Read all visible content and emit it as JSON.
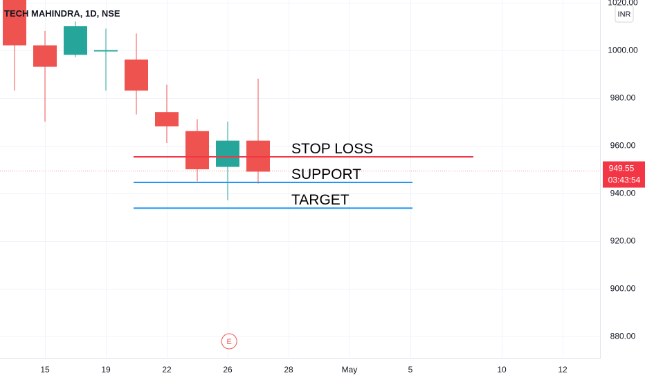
{
  "chart_data": {
    "type": "candlestick",
    "title": "TECH MAHINDRA, 1D, NSE",
    "currency": "INR",
    "y_ticks": [
      "1020.00",
      "1000.00",
      "980.00",
      "960.00",
      "940.00",
      "920.00",
      "900.00",
      "880.00"
    ],
    "y_tick_values": [
      1020,
      1000,
      980,
      960,
      940,
      920,
      900,
      880
    ],
    "ylim": [
      875,
      1020
    ],
    "x_tick_labels": [
      "15",
      "19",
      "22",
      "26",
      "28",
      "May",
      "5",
      "10",
      "12"
    ],
    "x_tick_positions": [
      1.0,
      3.0,
      5.0,
      7.0,
      9.0,
      11.0,
      13.0,
      16.0,
      18.0
    ],
    "xlim": [
      -0.5,
      18.5
    ],
    "candles": [
      {
        "o": 1022.0,
        "h": 1025.0,
        "l": 983.0,
        "c": 1002.0
      },
      {
        "o": 1002.0,
        "h": 1008.0,
        "l": 970.0,
        "c": 993.0
      },
      {
        "o": 998.0,
        "h": 1012.0,
        "l": 997.0,
        "c": 1010.0
      },
      {
        "o": 999.5,
        "h": 1009.0,
        "l": 983.0,
        "c": 1000.0
      },
      {
        "o": 996.0,
        "h": 1007.0,
        "l": 973.0,
        "c": 983.0
      },
      {
        "o": 974.0,
        "h": 985.5,
        "l": 961.0,
        "c": 968.0
      },
      {
        "o": 966.0,
        "h": 971.0,
        "l": 945.0,
        "c": 950.0
      },
      {
        "o": 951.0,
        "h": 970.0,
        "l": 937.0,
        "c": 962.0
      },
      {
        "o": 962.0,
        "h": 988.0,
        "l": 944.0,
        "c": 949.0
      }
    ],
    "bull_color": "#26a69a",
    "bear_color": "#ef5350",
    "current_price": "949.55",
    "countdown": "03:43:54",
    "current_price_value": 949.55,
    "levels": [
      {
        "label": "STOP LOSS",
        "value": 955.2,
        "x_start": 4.0,
        "x_end": 15.0,
        "color": "#f23645"
      },
      {
        "label": "SUPPORT",
        "value": 944.5,
        "x_start": 4.0,
        "x_end": 13.0,
        "color": "#2196f3"
      },
      {
        "label": "TARGET",
        "value": 933.7,
        "x_start": 4.0,
        "x_end": 13.0,
        "color": "#2196f3"
      }
    ],
    "event_marker": {
      "label": "E",
      "x": 7.05
    },
    "grid": true
  }
}
